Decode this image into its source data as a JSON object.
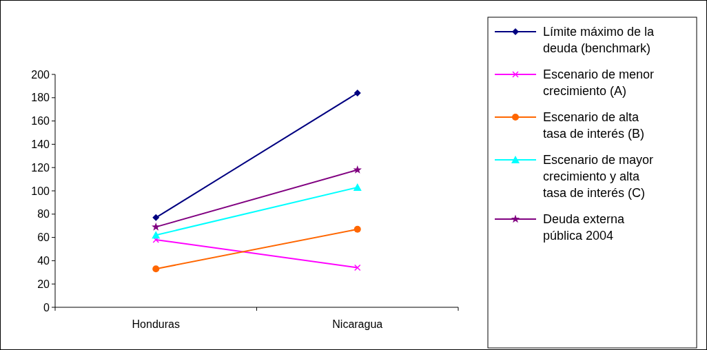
{
  "chart_data": {
    "type": "line",
    "categories": [
      "Honduras",
      "Nicaragua"
    ],
    "ylim": [
      0,
      200
    ],
    "yticks": [
      0,
      20,
      40,
      60,
      80,
      100,
      120,
      140,
      160,
      180,
      200
    ],
    "grid": false,
    "legend": "right",
    "series": [
      {
        "name": "Límite máximo de la deuda (benchmark)",
        "color": "#000080",
        "marker": "diamond",
        "values": [
          77,
          184
        ]
      },
      {
        "name": "Escenario de menor crecimiento (A)",
        "color": "#ff00ff",
        "marker": "cross",
        "values": [
          58,
          34
        ]
      },
      {
        "name": "Escenario de alta tasa de interés (B)",
        "color": "#ff6600",
        "marker": "circle",
        "values": [
          33,
          67
        ]
      },
      {
        "name": "Escenario de mayor crecimiento y alta tasa de interés (C)",
        "color": "#00ffff",
        "marker": "triangle",
        "values": [
          62,
          103
        ]
      },
      {
        "name": "Deuda externa pública 2004",
        "color": "#800080",
        "marker": "star",
        "values": [
          69,
          118
        ]
      }
    ]
  }
}
